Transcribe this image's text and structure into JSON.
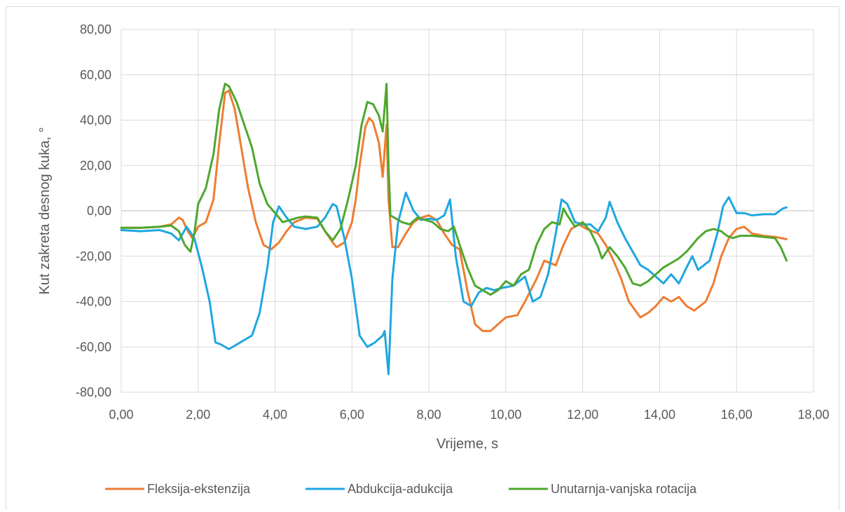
{
  "chart_data": {
    "type": "line",
    "title": "",
    "xlabel": "Vrijeme, s",
    "ylabel": "Kut zakreta desnog kuka, °",
    "xlim": [
      0,
      18
    ],
    "ylim": [
      -80,
      80
    ],
    "x_ticks": [
      0,
      2,
      4,
      6,
      8,
      10,
      12,
      14,
      16,
      18
    ],
    "y_ticks": [
      -80,
      -60,
      -40,
      -20,
      0,
      20,
      40,
      60,
      80
    ],
    "x_tick_labels": [
      "0,00",
      "2,00",
      "4,00",
      "6,00",
      "8,00",
      "10,00",
      "12,00",
      "14,00",
      "16,00",
      "18,00"
    ],
    "y_tick_labels": [
      "-80,00",
      "-60,00",
      "-40,00",
      "-20,00",
      "0,00",
      "20,00",
      "40,00",
      "60,00",
      "80,00"
    ],
    "grid": true,
    "legend_position": "bottom",
    "series": [
      {
        "name": "Fleksija-ekstenzija",
        "color": "#ED7D31",
        "points": [
          [
            0,
            -7.5
          ],
          [
            0.5,
            -7.5
          ],
          [
            1.0,
            -7
          ],
          [
            1.3,
            -6
          ],
          [
            1.5,
            -3
          ],
          [
            1.6,
            -4
          ],
          [
            1.7,
            -8
          ],
          [
            1.85,
            -12
          ],
          [
            2.0,
            -7
          ],
          [
            2.2,
            -5
          ],
          [
            2.4,
            5
          ],
          [
            2.55,
            30
          ],
          [
            2.7,
            52
          ],
          [
            2.8,
            53
          ],
          [
            2.95,
            45
          ],
          [
            3.1,
            30
          ],
          [
            3.3,
            10
          ],
          [
            3.5,
            -5
          ],
          [
            3.7,
            -15
          ],
          [
            3.9,
            -17
          ],
          [
            4.1,
            -14
          ],
          [
            4.3,
            -9
          ],
          [
            4.5,
            -5
          ],
          [
            4.8,
            -3
          ],
          [
            5.1,
            -3.5
          ],
          [
            5.3,
            -9
          ],
          [
            5.5,
            -14
          ],
          [
            5.6,
            -16
          ],
          [
            5.8,
            -14
          ],
          [
            6.0,
            -5
          ],
          [
            6.1,
            5
          ],
          [
            6.2,
            20
          ],
          [
            6.35,
            37
          ],
          [
            6.45,
            41
          ],
          [
            6.55,
            39
          ],
          [
            6.7,
            30
          ],
          [
            6.8,
            15
          ],
          [
            6.9,
            38
          ],
          [
            6.95,
            5
          ],
          [
            7.05,
            -16
          ],
          [
            7.2,
            -16
          ],
          [
            7.4,
            -10
          ],
          [
            7.6,
            -5
          ],
          [
            7.8,
            -3
          ],
          [
            8.0,
            -2
          ],
          [
            8.2,
            -4
          ],
          [
            8.4,
            -10
          ],
          [
            8.6,
            -15
          ],
          [
            8.8,
            -17
          ],
          [
            9.0,
            -35
          ],
          [
            9.2,
            -50
          ],
          [
            9.4,
            -53
          ],
          [
            9.6,
            -53
          ],
          [
            9.8,
            -50
          ],
          [
            10.0,
            -47
          ],
          [
            10.3,
            -46
          ],
          [
            10.5,
            -40
          ],
          [
            10.8,
            -30
          ],
          [
            11.0,
            -22
          ],
          [
            11.3,
            -24
          ],
          [
            11.5,
            -15
          ],
          [
            11.7,
            -8
          ],
          [
            11.9,
            -6
          ],
          [
            12.1,
            -8
          ],
          [
            12.4,
            -10
          ],
          [
            12.6,
            -15
          ],
          [
            12.8,
            -22
          ],
          [
            13.0,
            -30
          ],
          [
            13.2,
            -40
          ],
          [
            13.5,
            -47
          ],
          [
            13.7,
            -45
          ],
          [
            13.9,
            -42
          ],
          [
            14.1,
            -38
          ],
          [
            14.3,
            -40
          ],
          [
            14.5,
            -38
          ],
          [
            14.7,
            -42
          ],
          [
            14.9,
            -44
          ],
          [
            15.2,
            -40
          ],
          [
            15.4,
            -32
          ],
          [
            15.6,
            -20
          ],
          [
            15.8,
            -12
          ],
          [
            16.0,
            -8
          ],
          [
            16.2,
            -7
          ],
          [
            16.4,
            -10
          ],
          [
            16.7,
            -11
          ],
          [
            17.0,
            -11.5
          ],
          [
            17.3,
            -12.5
          ]
        ]
      },
      {
        "name": "Abdukcija-adukcija",
        "color": "#1FA7E0",
        "points": [
          [
            0,
            -8.5
          ],
          [
            0.5,
            -9
          ],
          [
            1.0,
            -8.5
          ],
          [
            1.3,
            -10
          ],
          [
            1.5,
            -13
          ],
          [
            1.7,
            -7
          ],
          [
            1.9,
            -12
          ],
          [
            2.1,
            -25
          ],
          [
            2.3,
            -40
          ],
          [
            2.45,
            -58
          ],
          [
            2.6,
            -59
          ],
          [
            2.8,
            -61
          ],
          [
            3.0,
            -59
          ],
          [
            3.2,
            -57
          ],
          [
            3.4,
            -55
          ],
          [
            3.6,
            -45
          ],
          [
            3.8,
            -25
          ],
          [
            3.95,
            -5
          ],
          [
            4.1,
            2
          ],
          [
            4.3,
            -3
          ],
          [
            4.5,
            -7
          ],
          [
            4.8,
            -8
          ],
          [
            5.1,
            -7
          ],
          [
            5.3,
            -3
          ],
          [
            5.5,
            3
          ],
          [
            5.6,
            2
          ],
          [
            5.8,
            -12
          ],
          [
            6.0,
            -30
          ],
          [
            6.2,
            -55
          ],
          [
            6.4,
            -60
          ],
          [
            6.6,
            -58
          ],
          [
            6.8,
            -55
          ],
          [
            6.85,
            -53
          ],
          [
            6.95,
            -72
          ],
          [
            7.05,
            -30
          ],
          [
            7.2,
            -5
          ],
          [
            7.4,
            8
          ],
          [
            7.6,
            0
          ],
          [
            7.8,
            -4
          ],
          [
            8.0,
            -3.5
          ],
          [
            8.2,
            -4
          ],
          [
            8.4,
            -2
          ],
          [
            8.55,
            5
          ],
          [
            8.7,
            -20
          ],
          [
            8.9,
            -40
          ],
          [
            9.1,
            -42
          ],
          [
            9.3,
            -36
          ],
          [
            9.5,
            -34
          ],
          [
            9.7,
            -35
          ],
          [
            9.9,
            -34
          ],
          [
            10.2,
            -33
          ],
          [
            10.5,
            -29
          ],
          [
            10.7,
            -40
          ],
          [
            10.9,
            -38
          ],
          [
            11.1,
            -28
          ],
          [
            11.3,
            -10
          ],
          [
            11.45,
            5
          ],
          [
            11.6,
            3
          ],
          [
            11.8,
            -5
          ],
          [
            12.0,
            -6
          ],
          [
            12.2,
            -6
          ],
          [
            12.4,
            -9
          ],
          [
            12.6,
            -3
          ],
          [
            12.7,
            4
          ],
          [
            12.9,
            -5
          ],
          [
            13.1,
            -12
          ],
          [
            13.3,
            -18
          ],
          [
            13.5,
            -24
          ],
          [
            13.7,
            -26
          ],
          [
            13.9,
            -29
          ],
          [
            14.1,
            -32
          ],
          [
            14.3,
            -28
          ],
          [
            14.5,
            -32
          ],
          [
            14.7,
            -25
          ],
          [
            14.85,
            -20
          ],
          [
            15.0,
            -26
          ],
          [
            15.3,
            -22
          ],
          [
            15.5,
            -10
          ],
          [
            15.65,
            2
          ],
          [
            15.8,
            6
          ],
          [
            16.0,
            -1
          ],
          [
            16.2,
            -1
          ],
          [
            16.4,
            -2
          ],
          [
            16.7,
            -1.5
          ],
          [
            17.0,
            -1.5
          ],
          [
            17.2,
            1
          ],
          [
            17.3,
            1.5
          ]
        ]
      },
      {
        "name": "Unutarnja-vanjska rotacija",
        "color": "#4EA72E",
        "points": [
          [
            0,
            -7.5
          ],
          [
            0.5,
            -7.5
          ],
          [
            1.0,
            -7
          ],
          [
            1.3,
            -6.5
          ],
          [
            1.5,
            -9
          ],
          [
            1.65,
            -15
          ],
          [
            1.8,
            -18
          ],
          [
            1.9,
            -10
          ],
          [
            2.0,
            3
          ],
          [
            2.2,
            10
          ],
          [
            2.4,
            25
          ],
          [
            2.55,
            45
          ],
          [
            2.7,
            56
          ],
          [
            2.8,
            55
          ],
          [
            3.0,
            48
          ],
          [
            3.2,
            38
          ],
          [
            3.4,
            28
          ],
          [
            3.6,
            12
          ],
          [
            3.8,
            3
          ],
          [
            4.0,
            -1
          ],
          [
            4.2,
            -5
          ],
          [
            4.4,
            -4
          ],
          [
            4.6,
            -3
          ],
          [
            4.8,
            -2.5
          ],
          [
            5.1,
            -3
          ],
          [
            5.3,
            -9
          ],
          [
            5.5,
            -13
          ],
          [
            5.7,
            -8
          ],
          [
            5.9,
            5
          ],
          [
            6.1,
            20
          ],
          [
            6.25,
            38
          ],
          [
            6.4,
            48
          ],
          [
            6.55,
            47
          ],
          [
            6.7,
            42
          ],
          [
            6.8,
            35
          ],
          [
            6.9,
            56
          ],
          [
            6.95,
            20
          ],
          [
            7.0,
            -2
          ],
          [
            7.3,
            -5
          ],
          [
            7.5,
            -6
          ],
          [
            7.7,
            -3
          ],
          [
            7.9,
            -4
          ],
          [
            8.1,
            -5
          ],
          [
            8.3,
            -8
          ],
          [
            8.5,
            -9
          ],
          [
            8.65,
            -7
          ],
          [
            8.8,
            -15
          ],
          [
            9.0,
            -25
          ],
          [
            9.2,
            -33
          ],
          [
            9.4,
            -35
          ],
          [
            9.6,
            -37
          ],
          [
            9.8,
            -35
          ],
          [
            10.0,
            -31
          ],
          [
            10.2,
            -33
          ],
          [
            10.4,
            -28
          ],
          [
            10.6,
            -26
          ],
          [
            10.8,
            -15
          ],
          [
            11.0,
            -8
          ],
          [
            11.2,
            -5
          ],
          [
            11.4,
            -6
          ],
          [
            11.5,
            1
          ],
          [
            11.6,
            -2
          ],
          [
            11.8,
            -7
          ],
          [
            12.0,
            -5
          ],
          [
            12.2,
            -9
          ],
          [
            12.4,
            -16
          ],
          [
            12.5,
            -21
          ],
          [
            12.7,
            -16
          ],
          [
            12.9,
            -20
          ],
          [
            13.1,
            -25
          ],
          [
            13.3,
            -32
          ],
          [
            13.5,
            -33
          ],
          [
            13.7,
            -31
          ],
          [
            13.9,
            -28
          ],
          [
            14.1,
            -25
          ],
          [
            14.3,
            -23
          ],
          [
            14.5,
            -21
          ],
          [
            14.7,
            -18
          ],
          [
            14.85,
            -15
          ],
          [
            15.0,
            -12
          ],
          [
            15.2,
            -9
          ],
          [
            15.4,
            -8
          ],
          [
            15.6,
            -9
          ],
          [
            15.75,
            -11
          ],
          [
            15.9,
            -12
          ],
          [
            16.1,
            -11
          ],
          [
            16.4,
            -11
          ],
          [
            16.7,
            -11.5
          ],
          [
            17.0,
            -12
          ],
          [
            17.15,
            -16
          ],
          [
            17.3,
            -22
          ]
        ]
      }
    ]
  }
}
